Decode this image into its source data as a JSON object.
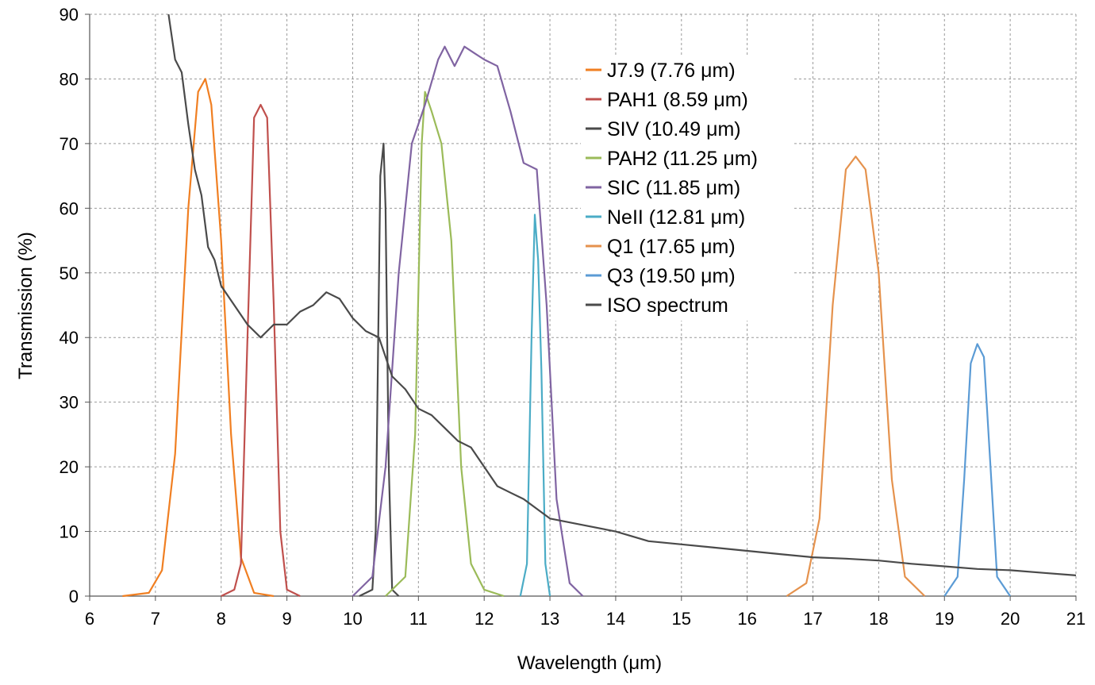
{
  "chart_data": {
    "type": "line",
    "title": "",
    "xlabel": "Wavelength (μm)",
    "ylabel": "Transmission (%)",
    "xlim": [
      6,
      21
    ],
    "ylim": [
      0,
      90
    ],
    "xticks": [
      6,
      7,
      8,
      9,
      10,
      11,
      12,
      13,
      14,
      15,
      16,
      17,
      18,
      19,
      20,
      21
    ],
    "yticks": [
      0,
      10,
      20,
      30,
      40,
      50,
      60,
      70,
      80,
      90
    ],
    "xtick_labels": [
      "6",
      "7",
      "8",
      "9",
      "10",
      "11",
      "12",
      "13",
      "14",
      "15",
      "16",
      "17",
      "18",
      "19",
      "20",
      "21"
    ],
    "ytick_labels": [
      "0",
      "10",
      "20",
      "30",
      "40",
      "50",
      "60",
      "70",
      "80",
      "90"
    ],
    "grid": true,
    "legend_position": "top-center",
    "series": [
      {
        "name": "J7.9 (7.76 μm)",
        "color": "#f07f22",
        "x": [
          6.5,
          6.9,
          7.1,
          7.3,
          7.5,
          7.65,
          7.76,
          7.85,
          8.0,
          8.15,
          8.3,
          8.5,
          8.8
        ],
        "y": [
          0,
          0.5,
          4,
          22,
          60,
          78,
          80,
          76,
          55,
          25,
          6,
          0.5,
          0
        ]
      },
      {
        "name": "PAH1 (8.59 μm)",
        "color": "#c0504d",
        "x": [
          8.0,
          8.2,
          8.3,
          8.4,
          8.5,
          8.6,
          8.7,
          8.8,
          8.9,
          9.0,
          9.2
        ],
        "y": [
          0,
          1,
          5,
          40,
          74,
          76,
          74,
          45,
          10,
          1,
          0
        ]
      },
      {
        "name": "SIV (10.49 μm)",
        "color": "#4a4a4a",
        "x": [
          10.1,
          10.3,
          10.35,
          10.42,
          10.47,
          10.5,
          10.55,
          10.6,
          10.7
        ],
        "y": [
          0,
          1,
          10,
          65,
          70,
          60,
          20,
          1,
          0
        ]
      },
      {
        "name": "PAH2 (11.25 μm)",
        "color": "#9bbb59",
        "x": [
          10.5,
          10.8,
          10.95,
          11.05,
          11.1,
          11.2,
          11.35,
          11.5,
          11.65,
          11.8,
          12.0,
          12.3
        ],
        "y": [
          0,
          3,
          25,
          70,
          78,
          75,
          70,
          55,
          20,
          5,
          1,
          0
        ]
      },
      {
        "name": "SIC (11.85 μm)",
        "color": "#8064a2",
        "x": [
          10.0,
          10.3,
          10.5,
          10.7,
          10.9,
          11.1,
          11.3,
          11.4,
          11.55,
          11.7,
          11.85,
          12.0,
          12.2,
          12.4,
          12.6,
          12.8,
          12.95,
          13.1,
          13.3,
          13.5
        ],
        "y": [
          0,
          3,
          20,
          50,
          70,
          76,
          83,
          85,
          82,
          85,
          84,
          83,
          82,
          75,
          67,
          66,
          45,
          15,
          2,
          0
        ]
      },
      {
        "name": "NeII (12.81 μm)",
        "color": "#4bacc6",
        "x": [
          12.55,
          12.65,
          12.72,
          12.77,
          12.82,
          12.87,
          12.93,
          13.0
        ],
        "y": [
          0,
          5,
          40,
          59,
          52,
          35,
          5,
          0
        ]
      },
      {
        "name": "Q1 (17.65 μm)",
        "color": "#e5924d",
        "x": [
          16.6,
          16.9,
          17.1,
          17.3,
          17.5,
          17.65,
          17.8,
          18.0,
          18.2,
          18.4,
          18.7
        ],
        "y": [
          0,
          2,
          12,
          45,
          66,
          68,
          66,
          50,
          18,
          3,
          0
        ]
      },
      {
        "name": "Q3 (19.50 μm)",
        "color": "#5b9bd5",
        "x": [
          19.0,
          19.2,
          19.3,
          19.4,
          19.5,
          19.6,
          19.7,
          19.8,
          20.0
        ],
        "y": [
          0,
          3,
          18,
          36,
          39,
          37,
          20,
          3,
          0
        ]
      },
      {
        "name": "ISO spectrum",
        "color": "#4a4a4a",
        "x": [
          7.2,
          7.3,
          7.4,
          7.5,
          7.6,
          7.7,
          7.8,
          7.9,
          8.0,
          8.2,
          8.4,
          8.6,
          8.8,
          9.0,
          9.2,
          9.4,
          9.6,
          9.8,
          10.0,
          10.2,
          10.4,
          10.6,
          10.8,
          11.0,
          11.2,
          11.4,
          11.6,
          11.8,
          12.0,
          12.2,
          12.4,
          12.6,
          12.8,
          13.0,
          13.5,
          14.0,
          14.5,
          15.0,
          15.5,
          16.0,
          16.5,
          17.0,
          17.5,
          18.0,
          18.5,
          19.0,
          19.5,
          20.0,
          20.5,
          21.0
        ],
        "y": [
          90,
          83,
          81,
          73,
          66,
          62,
          54,
          52,
          48,
          45,
          42,
          40,
          42,
          42,
          44,
          45,
          47,
          46,
          43,
          41,
          40,
          34,
          32,
          29,
          28,
          26,
          24,
          23,
          20,
          17,
          16,
          15,
          13.5,
          12,
          11,
          10,
          8.5,
          8,
          7.5,
          7,
          6.5,
          6,
          5.8,
          5.5,
          5,
          4.6,
          4.2,
          4,
          3.6,
          3.2
        ]
      }
    ]
  }
}
